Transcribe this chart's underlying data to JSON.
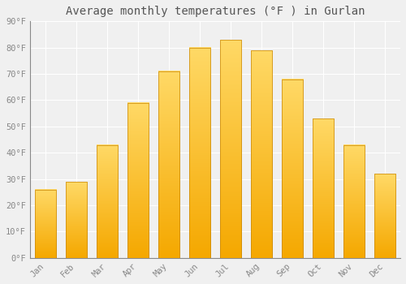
{
  "title": "Average monthly temperatures (°F ) in Gurlan",
  "months": [
    "Jan",
    "Feb",
    "Mar",
    "Apr",
    "May",
    "Jun",
    "Jul",
    "Aug",
    "Sep",
    "Oct",
    "Nov",
    "Dec"
  ],
  "values": [
    26,
    29,
    43,
    59,
    71,
    80,
    83,
    79,
    68,
    53,
    43,
    32
  ],
  "bar_color_bottom": "#F5A800",
  "bar_color_top": "#FFD966",
  "bar_edge_color": "#C8870A",
  "ylim": [
    0,
    90
  ],
  "yticks": [
    0,
    10,
    20,
    30,
    40,
    50,
    60,
    70,
    80,
    90
  ],
  "ytick_labels": [
    "0°F",
    "10°F",
    "20°F",
    "30°F",
    "40°F",
    "50°F",
    "60°F",
    "70°F",
    "80°F",
    "90°F"
  ],
  "background_color": "#f0f0f0",
  "plot_bg_color": "#f0f0f0",
  "grid_color": "#ffffff",
  "title_fontsize": 10,
  "tick_fontsize": 7.5,
  "font_color": "#888888",
  "title_color": "#555555"
}
